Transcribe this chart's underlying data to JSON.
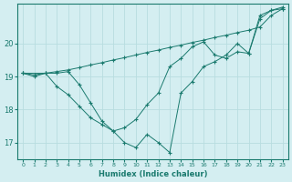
{
  "xlabel": "Humidex (Indice chaleur)",
  "bg_color": "#d4eef1",
  "grid_color": "#b8dde0",
  "line_color": "#1a7a6e",
  "xlim": [
    -0.5,
    23.5
  ],
  "ylim": [
    16.5,
    21.2
  ],
  "yticks": [
    17,
    18,
    19,
    20
  ],
  "xtick_labels": [
    "0",
    "1",
    "2",
    "3",
    "4",
    "5",
    "6",
    "7",
    "8",
    "9",
    "10",
    "11",
    "12",
    "13",
    "14",
    "15",
    "16",
    "17",
    "18",
    "19",
    "20",
    "21",
    "22",
    "23"
  ],
  "series": [
    {
      "x": [
        0,
        1,
        2,
        3,
        4,
        5,
        6,
        7,
        8,
        9,
        10,
        11,
        12,
        13,
        14,
        15,
        16,
        17,
        18,
        19,
        20,
        21,
        22,
        23
      ],
      "y": [
        19.1,
        19.05,
        19.1,
        19.15,
        19.2,
        19.27,
        19.35,
        19.42,
        19.5,
        19.57,
        19.65,
        19.73,
        19.8,
        19.88,
        19.95,
        20.03,
        20.1,
        20.18,
        20.25,
        20.33,
        20.4,
        20.5,
        20.85,
        21.05
      ]
    },
    {
      "x": [
        0,
        1,
        2,
        3,
        4,
        5,
        6,
        7,
        8,
        9,
        10,
        11,
        12,
        13,
        14,
        15,
        16,
        17,
        18,
        19,
        20,
        21,
        22,
        23
      ],
      "y": [
        19.1,
        19.0,
        19.1,
        18.7,
        18.45,
        18.1,
        17.75,
        17.55,
        17.35,
        17.45,
        17.7,
        18.15,
        18.5,
        19.3,
        19.55,
        19.9,
        20.05,
        19.65,
        19.55,
        19.75,
        19.7,
        20.85,
        21.0,
        21.1
      ]
    },
    {
      "x": [
        0,
        2,
        3,
        4,
        5,
        6,
        7,
        8,
        9,
        10,
        11,
        12,
        13,
        14,
        15,
        16,
        17,
        18,
        19,
        20,
        21,
        22,
        23
      ],
      "y": [
        19.1,
        19.1,
        19.1,
        19.15,
        18.75,
        18.2,
        17.65,
        17.35,
        17.0,
        16.85,
        17.25,
        17.0,
        16.7,
        18.5,
        18.85,
        19.3,
        19.45,
        19.65,
        20.0,
        19.7,
        20.75,
        21.0,
        21.05
      ]
    }
  ]
}
